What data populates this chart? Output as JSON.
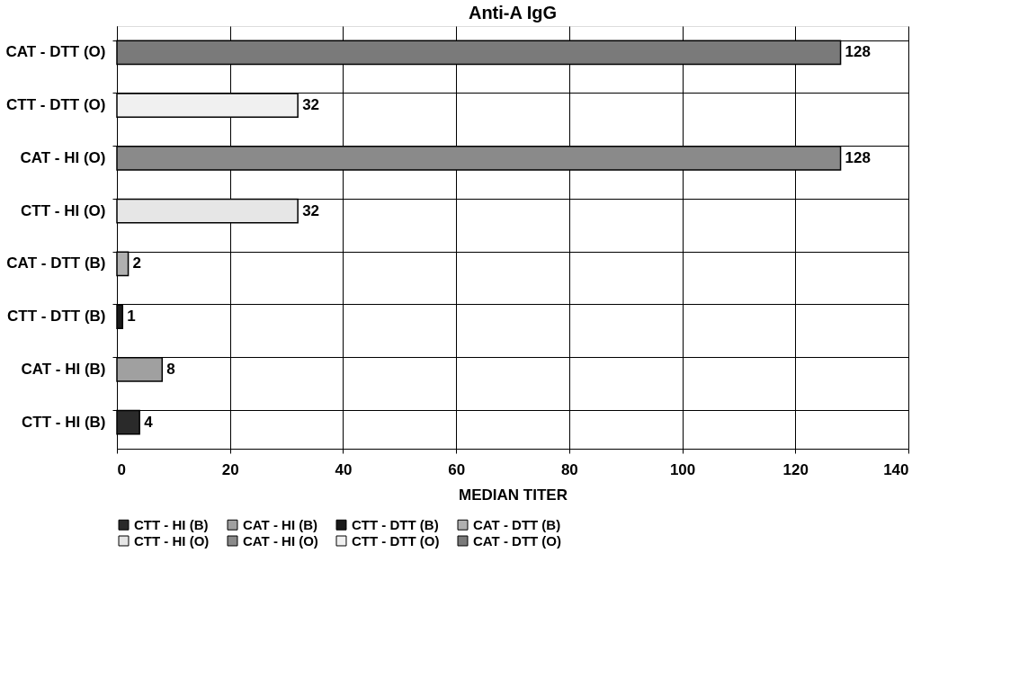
{
  "chart_data": {
    "type": "bar",
    "orientation": "horizontal",
    "title": "Anti-A IgG",
    "xlabel": "MEDIAN TITER",
    "categories": [
      "CAT - DTT (O)",
      "CTT - DTT (O)",
      "CAT - HI (O)",
      "CTT - HI (O)",
      "CAT - DTT (B)",
      "CTT - DTT (B)",
      "CAT - HI (B)",
      "CTT - HI (B)"
    ],
    "series": [
      {
        "name": "CTT - HI (B)",
        "color": "#2a2a2a",
        "values": [
          null,
          null,
          null,
          null,
          null,
          null,
          null,
          4
        ]
      },
      {
        "name": "CAT - HI (B)",
        "color": "#a0a0a0",
        "values": [
          null,
          null,
          null,
          null,
          null,
          null,
          8,
          null
        ]
      },
      {
        "name": "CTT - DTT (B)",
        "color": "#1a1a1a",
        "values": [
          null,
          null,
          null,
          null,
          null,
          1,
          null,
          null
        ]
      },
      {
        "name": "CAT - DTT (B)",
        "color": "#b0b0b0",
        "values": [
          null,
          null,
          null,
          null,
          2,
          null,
          null,
          null
        ]
      },
      {
        "name": "CTT - HI (O)",
        "color": "#e6e6e6",
        "values": [
          null,
          null,
          null,
          32,
          null,
          null,
          null,
          null
        ]
      },
      {
        "name": "CAT - HI (O)",
        "color": "#8a8a8a",
        "values": [
          null,
          null,
          128,
          null,
          null,
          null,
          null,
          null
        ]
      },
      {
        "name": "CTT - DTT (O)",
        "color": "#f0f0f0",
        "values": [
          null,
          32,
          null,
          null,
          null,
          null,
          null,
          null
        ]
      },
      {
        "name": "CAT - DTT (O)",
        "color": "#7a7a7a",
        "values": [
          128,
          null,
          null,
          null,
          null,
          null,
          null,
          null
        ]
      }
    ],
    "xlim": [
      0,
      140
    ],
    "xticks": [
      0,
      20,
      40,
      60,
      80,
      100,
      120,
      140
    ],
    "grid": true,
    "legend": "bottom",
    "data_labels": true
  }
}
